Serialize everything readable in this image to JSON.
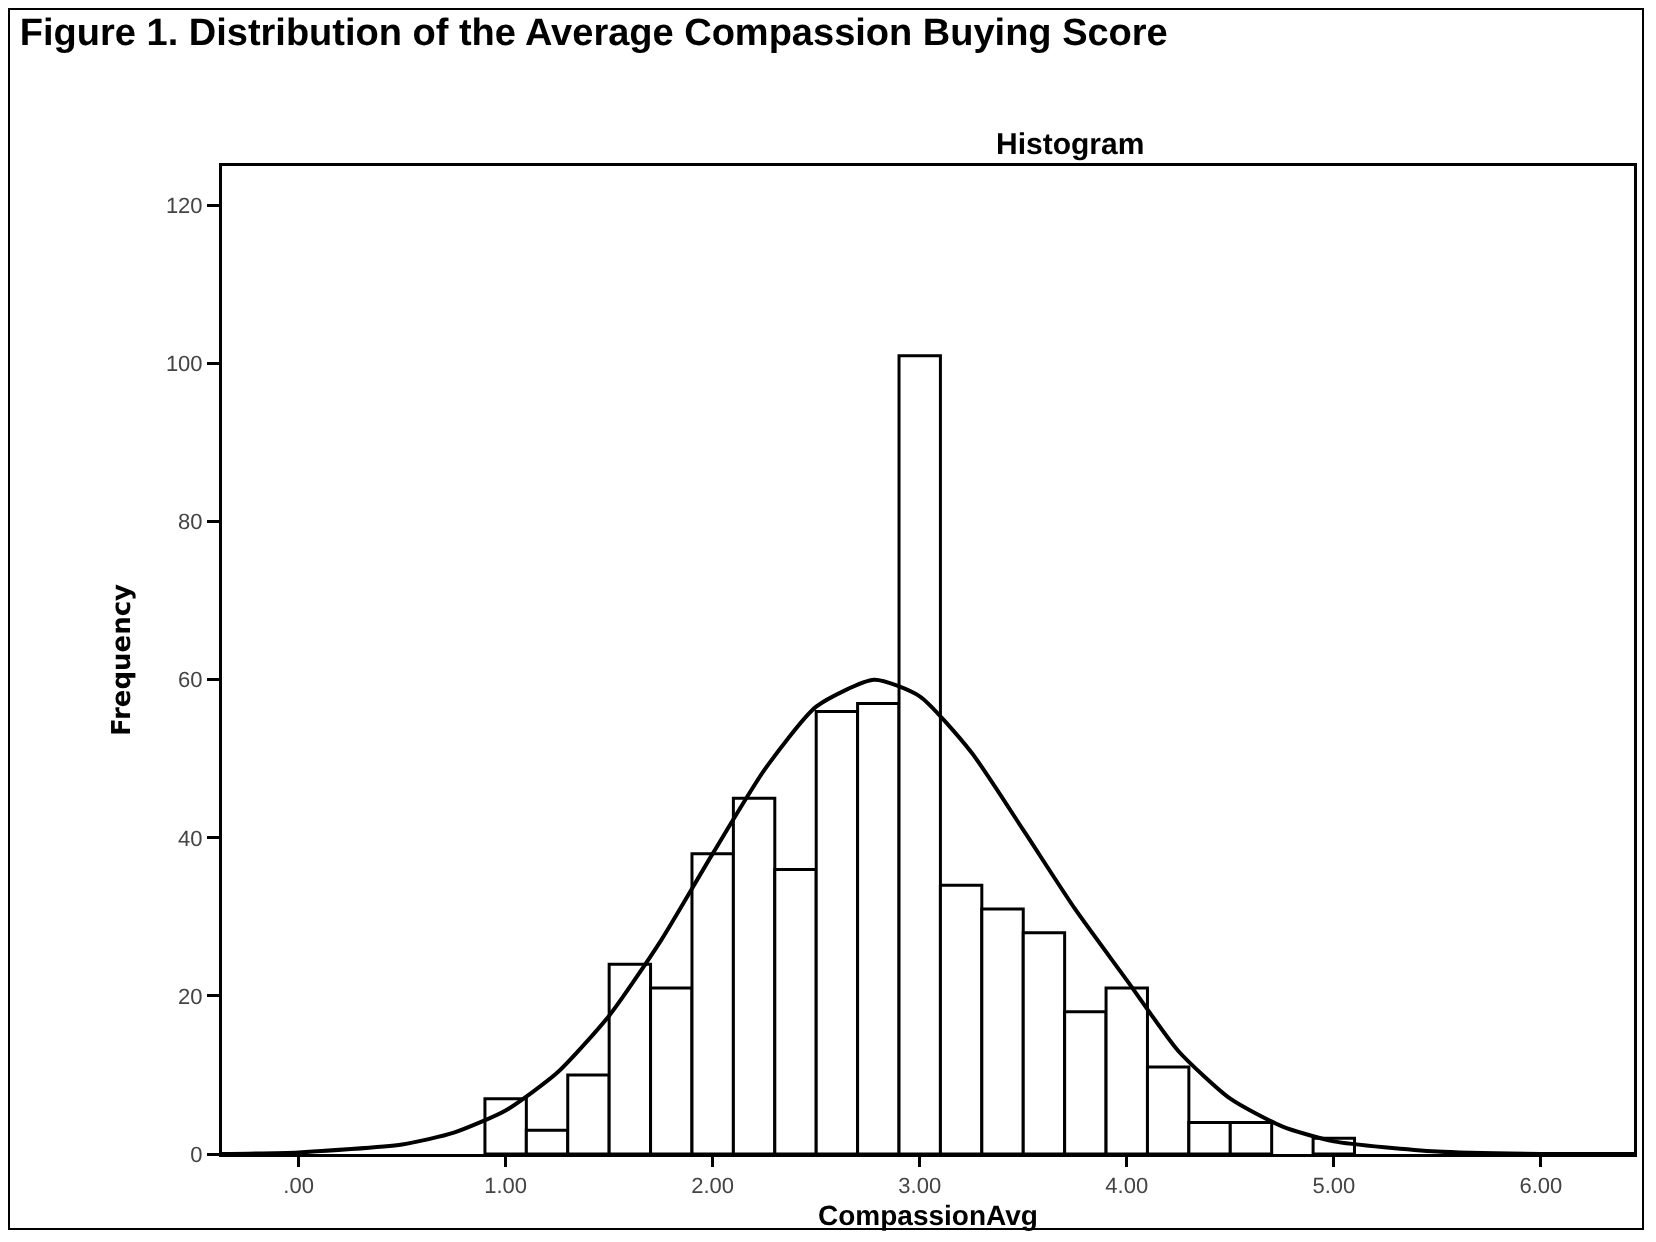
{
  "chart_data": {
    "type": "histogram",
    "title": "Figure 1. Distribution of the Average Compassion Buying Score",
    "subtitle": "Histogram",
    "xlabel": "CompassionAvg",
    "ylabel": "Frequency",
    "color": "#ffffff",
    "bins": [
      0.9,
      1.1,
      1.3,
      1.5,
      1.7,
      1.9,
      2.1,
      2.3,
      2.5,
      2.7,
      2.9,
      3.1,
      3.3,
      3.5,
      3.7,
      3.9,
      4.1,
      4.3,
      4.5,
      4.7,
      4.9,
      5.1
    ],
    "values": [
      7,
      3,
      10,
      24,
      21,
      38,
      45,
      36,
      56,
      57,
      101,
      34,
      31,
      28,
      18,
      21,
      11,
      4,
      4,
      0,
      2
    ],
    "series": [
      {
        "type": "line",
        "color": "#000000",
        "x": [
          -0.37,
          0,
          0.5,
          0.75,
          1,
          1.25,
          1.5,
          1.75,
          2,
          2.25,
          2.5,
          2.78,
          3,
          3.25,
          3.5,
          3.75,
          4,
          4.25,
          4.5,
          4.75,
          5,
          5.5,
          6,
          6.45
        ],
        "values": [
          0,
          0.2,
          1.2,
          2.7,
          5.5,
          10.3,
          17.5,
          27,
          38,
          48.6,
          56.6,
          60,
          57.9,
          50.8,
          41,
          31,
          22,
          13,
          7,
          3.5,
          1.6,
          0.3,
          0,
          0
        ]
      }
    ],
    "xlim": [
      -0.37,
      6.45
    ],
    "ylim": [
      0,
      125
    ],
    "xticks": [
      {
        "value": 0,
        "label": ".00"
      },
      {
        "value": 1,
        "label": "1.00"
      },
      {
        "value": 2,
        "label": "2.00"
      },
      {
        "value": 3,
        "label": "3.00"
      },
      {
        "value": 4,
        "label": "4.00"
      },
      {
        "value": 5,
        "label": "5.00"
      },
      {
        "value": 6,
        "label": "6.00"
      }
    ],
    "yticks": [
      0,
      20,
      40,
      60,
      80,
      100,
      120
    ],
    "grid": false,
    "marker": "none",
    "line_style": "solid"
  }
}
